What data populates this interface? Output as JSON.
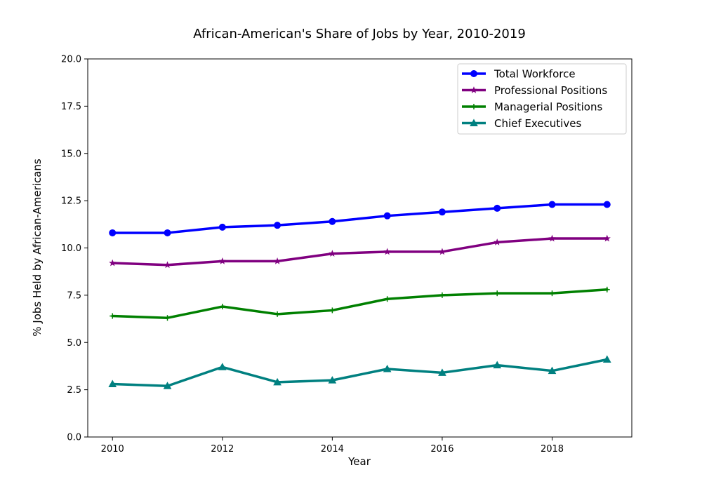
{
  "chart_data": {
    "type": "line",
    "title": "African-American's Share of Jobs by Year, 2010-2019",
    "xlabel": "Year",
    "ylabel": "% Jobs Held by African-Americans",
    "xlim": [
      2009.55,
      2019.45
    ],
    "ylim": [
      0,
      20
    ],
    "xticks": [
      2010,
      2012,
      2014,
      2016,
      2018
    ],
    "yticks": [
      0,
      2.5,
      5,
      7.5,
      10,
      12.5,
      15,
      17.5,
      20
    ],
    "ytick_labels": [
      "0.0",
      "2.5",
      "5.0",
      "7.5",
      "10.0",
      "12.5",
      "15.0",
      "17.5",
      "20.0"
    ],
    "legend_position": "top-right",
    "grid": false,
    "x": [
      2010,
      2011,
      2012,
      2013,
      2014,
      2015,
      2016,
      2017,
      2018,
      2019
    ],
    "series": [
      {
        "name": "Total Workforce",
        "color": "#0000ff",
        "marker": "circle",
        "values": [
          10.8,
          10.8,
          11.1,
          11.2,
          11.4,
          11.7,
          11.9,
          12.1,
          12.3,
          12.3
        ]
      },
      {
        "name": "Professional Positions",
        "color": "#800080",
        "marker": "star",
        "values": [
          9.2,
          9.1,
          9.3,
          9.3,
          9.7,
          9.8,
          9.8,
          10.3,
          10.5,
          10.5
        ]
      },
      {
        "name": "Managerial Positions",
        "color": "#008000",
        "marker": "plus",
        "values": [
          6.4,
          6.3,
          6.9,
          6.5,
          6.7,
          7.3,
          7.5,
          7.6,
          7.6,
          7.8
        ]
      },
      {
        "name": "Chief Executives",
        "color": "#008080",
        "marker": "triangle",
        "values": [
          2.8,
          2.7,
          3.7,
          2.9,
          3.0,
          3.6,
          3.4,
          3.8,
          3.5,
          4.1
        ]
      }
    ]
  }
}
